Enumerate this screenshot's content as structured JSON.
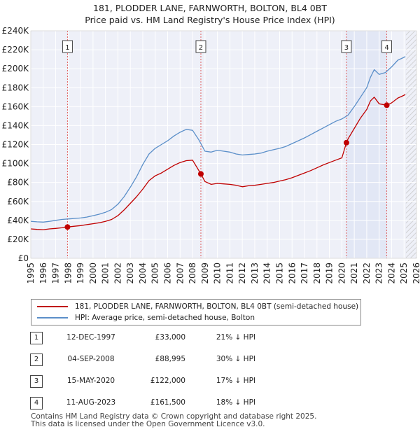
{
  "title_line1": "181, PLODDER LANE, FARNWORTH, BOLTON, BL4 0BT",
  "title_line2": "Price paid vs. HM Land Registry's House Price Index (HPI)",
  "chart_data": {
    "type": "line",
    "title": "181, PLODDER LANE, FARNWORTH, BOLTON, BL4 0BT — Price paid vs. HM Land Registry's House Price Index (HPI)",
    "xlim": [
      1995,
      2026
    ],
    "ylim": [
      0,
      240000
    ],
    "x_ticks": [
      "1995",
      "1996",
      "1997",
      "1998",
      "1999",
      "2000",
      "2001",
      "2002",
      "2003",
      "2004",
      "2005",
      "2006",
      "2007",
      "2008",
      "2009",
      "2010",
      "2011",
      "2012",
      "2013",
      "2014",
      "2015",
      "2016",
      "2017",
      "2018",
      "2019",
      "2020",
      "2021",
      "2022",
      "2023",
      "2024",
      "2025",
      "2026"
    ],
    "y_ticks": [
      {
        "value": 0,
        "label": "£0"
      },
      {
        "value": 20000,
        "label": "£20K"
      },
      {
        "value": 40000,
        "label": "£40K"
      },
      {
        "value": 60000,
        "label": "£60K"
      },
      {
        "value": 80000,
        "label": "£80K"
      },
      {
        "value": 100000,
        "label": "£100K"
      },
      {
        "value": 120000,
        "label": "£120K"
      },
      {
        "value": 140000,
        "label": "£140K"
      },
      {
        "value": 160000,
        "label": "£160K"
      },
      {
        "value": 180000,
        "label": "£180K"
      },
      {
        "value": 200000,
        "label": "£200K"
      },
      {
        "value": 220000,
        "label": "£220K"
      },
      {
        "value": 240000,
        "label": "£240K"
      }
    ],
    "grid": true,
    "future_hatch_from": 2025.15,
    "series": [
      {
        "name": "181, PLODDER LANE, FARNWORTH, BOLTON, BL4 0BT (semi-detached house)",
        "color": "#c00000",
        "points": [
          [
            1995,
            31000
          ],
          [
            1995.5,
            30500
          ],
          [
            1996,
            30200
          ],
          [
            1996.5,
            31000
          ],
          [
            1997,
            31500
          ],
          [
            1997.5,
            32200
          ],
          [
            1997.95,
            33000
          ],
          [
            1998.5,
            33800
          ],
          [
            1999,
            34500
          ],
          [
            1999.5,
            35500
          ],
          [
            2000,
            36500
          ],
          [
            2000.5,
            37500
          ],
          [
            2001,
            39000
          ],
          [
            2001.5,
            41000
          ],
          [
            2002,
            45000
          ],
          [
            2002.5,
            51000
          ],
          [
            2003,
            58000
          ],
          [
            2003.5,
            65000
          ],
          [
            2004,
            73000
          ],
          [
            2004.5,
            82000
          ],
          [
            2005,
            87000
          ],
          [
            2005.5,
            90000
          ],
          [
            2006,
            94000
          ],
          [
            2006.5,
            98000
          ],
          [
            2007,
            101000
          ],
          [
            2007.5,
            103000
          ],
          [
            2008,
            103500
          ],
          [
            2008.3,
            97000
          ],
          [
            2008.67,
            88995
          ],
          [
            2009,
            81000
          ],
          [
            2009.5,
            78000
          ],
          [
            2010,
            79000
          ],
          [
            2010.5,
            78500
          ],
          [
            2011,
            78000
          ],
          [
            2011.5,
            77000
          ],
          [
            2012,
            75500
          ],
          [
            2012.5,
            76500
          ],
          [
            2013,
            77000
          ],
          [
            2013.5,
            78000
          ],
          [
            2014,
            79000
          ],
          [
            2014.5,
            80000
          ],
          [
            2015,
            81500
          ],
          [
            2015.5,
            83000
          ],
          [
            2016,
            85000
          ],
          [
            2016.5,
            87500
          ],
          [
            2017,
            90000
          ],
          [
            2017.5,
            92500
          ],
          [
            2018,
            95500
          ],
          [
            2018.5,
            98500
          ],
          [
            2019,
            101000
          ],
          [
            2019.5,
            103500
          ],
          [
            2020,
            106000
          ],
          [
            2020.37,
            122000
          ],
          [
            2020.5,
            126000
          ],
          [
            2021,
            137000
          ],
          [
            2021.5,
            148000
          ],
          [
            2022,
            157000
          ],
          [
            2022.3,
            166000
          ],
          [
            2022.6,
            170000
          ],
          [
            2023,
            163000
          ],
          [
            2023.61,
            161500
          ],
          [
            2024,
            164000
          ],
          [
            2024.5,
            169000
          ],
          [
            2025,
            172000
          ],
          [
            2025.1,
            173000
          ]
        ]
      },
      {
        "name": "HPI: Average price, semi-detached house, Bolton",
        "color": "#5b8fc9",
        "points": [
          [
            1995,
            39000
          ],
          [
            1995.5,
            38500
          ],
          [
            1996,
            38200
          ],
          [
            1996.5,
            39000
          ],
          [
            1997,
            40000
          ],
          [
            1997.5,
            41000
          ],
          [
            1998,
            41500
          ],
          [
            1998.5,
            42000
          ],
          [
            1999,
            42500
          ],
          [
            1999.5,
            43500
          ],
          [
            2000,
            45000
          ],
          [
            2000.5,
            46500
          ],
          [
            2001,
            48500
          ],
          [
            2001.5,
            51500
          ],
          [
            2002,
            57000
          ],
          [
            2002.5,
            65000
          ],
          [
            2003,
            75000
          ],
          [
            2003.5,
            86000
          ],
          [
            2004,
            99000
          ],
          [
            2004.5,
            110000
          ],
          [
            2005,
            116000
          ],
          [
            2005.5,
            120000
          ],
          [
            2006,
            124000
          ],
          [
            2006.5,
            129000
          ],
          [
            2007,
            133000
          ],
          [
            2007.5,
            136000
          ],
          [
            2008,
            135000
          ],
          [
            2008.5,
            125000
          ],
          [
            2009,
            113000
          ],
          [
            2009.5,
            112000
          ],
          [
            2010,
            114000
          ],
          [
            2010.5,
            113000
          ],
          [
            2011,
            112000
          ],
          [
            2011.5,
            110000
          ],
          [
            2012,
            109000
          ],
          [
            2012.5,
            109500
          ],
          [
            2013,
            110000
          ],
          [
            2013.5,
            111000
          ],
          [
            2014,
            113000
          ],
          [
            2014.5,
            114500
          ],
          [
            2015,
            116000
          ],
          [
            2015.5,
            118000
          ],
          [
            2016,
            121000
          ],
          [
            2016.5,
            124000
          ],
          [
            2017,
            127000
          ],
          [
            2017.5,
            130500
          ],
          [
            2018,
            134000
          ],
          [
            2018.5,
            137500
          ],
          [
            2019,
            141000
          ],
          [
            2019.5,
            144500
          ],
          [
            2020,
            147000
          ],
          [
            2020.5,
            151000
          ],
          [
            2021,
            160000
          ],
          [
            2021.5,
            170000
          ],
          [
            2022,
            180000
          ],
          [
            2022.3,
            191000
          ],
          [
            2022.6,
            199000
          ],
          [
            2023,
            194000
          ],
          [
            2023.5,
            196000
          ],
          [
            2024,
            202000
          ],
          [
            2024.5,
            209000
          ],
          [
            2025,
            212000
          ],
          [
            2025.1,
            213000
          ]
        ]
      }
    ],
    "annotations": [
      {
        "label": "1",
        "x": 1997.95,
        "y": 33000
      },
      {
        "label": "2",
        "x": 2008.67,
        "y": 88995
      },
      {
        "label": "3",
        "x": 2020.37,
        "y": 122000
      },
      {
        "label": "4",
        "x": 2023.61,
        "y": 161500
      }
    ]
  },
  "legend": {
    "property_label": "181, PLODDER LANE, FARNWORTH, BOLTON, BL4 0BT (semi-detached house)",
    "property_color": "#c00000",
    "hpi_label": "HPI: Average price, semi-detached house, Bolton",
    "hpi_color": "#5b8fc9"
  },
  "transactions": [
    {
      "num": "1",
      "date": "12-DEC-1997",
      "price": "£33,000",
      "hpi": "21% ↓ HPI"
    },
    {
      "num": "2",
      "date": "04-SEP-2008",
      "price": "£88,995",
      "hpi": "30% ↓ HPI"
    },
    {
      "num": "3",
      "date": "15-MAY-2020",
      "price": "£122,000",
      "hpi": "17% ↓ HPI"
    },
    {
      "num": "4",
      "date": "11-AUG-2023",
      "price": "£161,500",
      "hpi": "18% ↓ HPI"
    }
  ],
  "footer_line1": "Contains HM Land Registry data © Crown copyright and database right 2025.",
  "footer_line2": "This data is licensed under the Open Government Licence v3.0."
}
